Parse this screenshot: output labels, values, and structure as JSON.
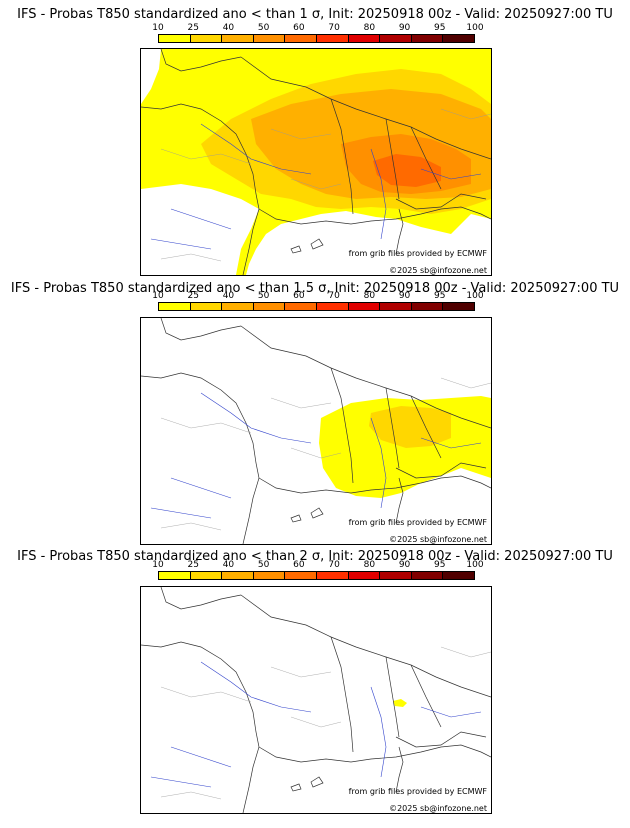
{
  "colors": [
    "#ffff00",
    "#ffd700",
    "#ffb000",
    "#ff9000",
    "#ff6a00",
    "#ff3000",
    "#e00000",
    "#b00000",
    "#800000",
    "#500000"
  ],
  "scale_ticks": [
    "10",
    "25",
    "40",
    "50",
    "60",
    "70",
    "80",
    "90",
    "95",
    "100"
  ],
  "credit_source": "from grib files provided by ECMWF",
  "credit_copyright": "©2025 sb@infozone.net",
  "panels": [
    {
      "title": "IFS - Probas T850  standardized ano < than 1 σ, Init: 20250918 00z - Valid: 20250927:00 TU"
    },
    {
      "title": "IFS - Probas T850  standardized ano < than 1.5 σ, Init: 20250918 00z - Valid: 20250927:00 TU"
    },
    {
      "title": "IFS - Probas T850  standardized ano < than 2 σ, Init: 20250918 00z - Valid: 20250927:00 TU"
    }
  ]
}
